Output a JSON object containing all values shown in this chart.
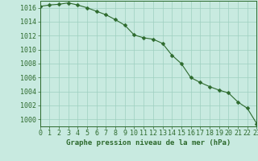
{
  "x": [
    0,
    1,
    2,
    3,
    4,
    5,
    6,
    7,
    8,
    9,
    10,
    11,
    12,
    13,
    14,
    15,
    16,
    17,
    18,
    19,
    20,
    21,
    22,
    23
  ],
  "y": [
    1016.2,
    1016.4,
    1016.5,
    1016.7,
    1016.4,
    1016.0,
    1015.5,
    1015.0,
    1014.3,
    1013.5,
    1012.1,
    1011.7,
    1011.5,
    1010.9,
    1009.2,
    1008.0,
    1006.0,
    1005.3,
    1004.7,
    1004.2,
    1003.8,
    1002.5,
    1001.6,
    999.4
  ],
  "xlim": [
    0,
    23
  ],
  "ylim": [
    999,
    1017
  ],
  "yticks": [
    1000,
    1002,
    1004,
    1006,
    1008,
    1010,
    1012,
    1014,
    1016
  ],
  "xticks": [
    0,
    1,
    2,
    3,
    4,
    5,
    6,
    7,
    8,
    9,
    10,
    11,
    12,
    13,
    14,
    15,
    16,
    17,
    18,
    19,
    20,
    21,
    22,
    23
  ],
  "xlabel": "Graphe pression niveau de la mer (hPa)",
  "line_color": "#2d6a2d",
  "marker_color": "#2d6a2d",
  "bg_color": "#c8eae0",
  "grid_color": "#9ecfbf",
  "axis_color": "#2d6a2d",
  "tick_color": "#2d6a2d",
  "label_color": "#2d6a2d",
  "xlabel_fontsize": 6.5,
  "tick_fontsize": 6.0,
  "line_width": 0.8,
  "marker_size": 2.5
}
